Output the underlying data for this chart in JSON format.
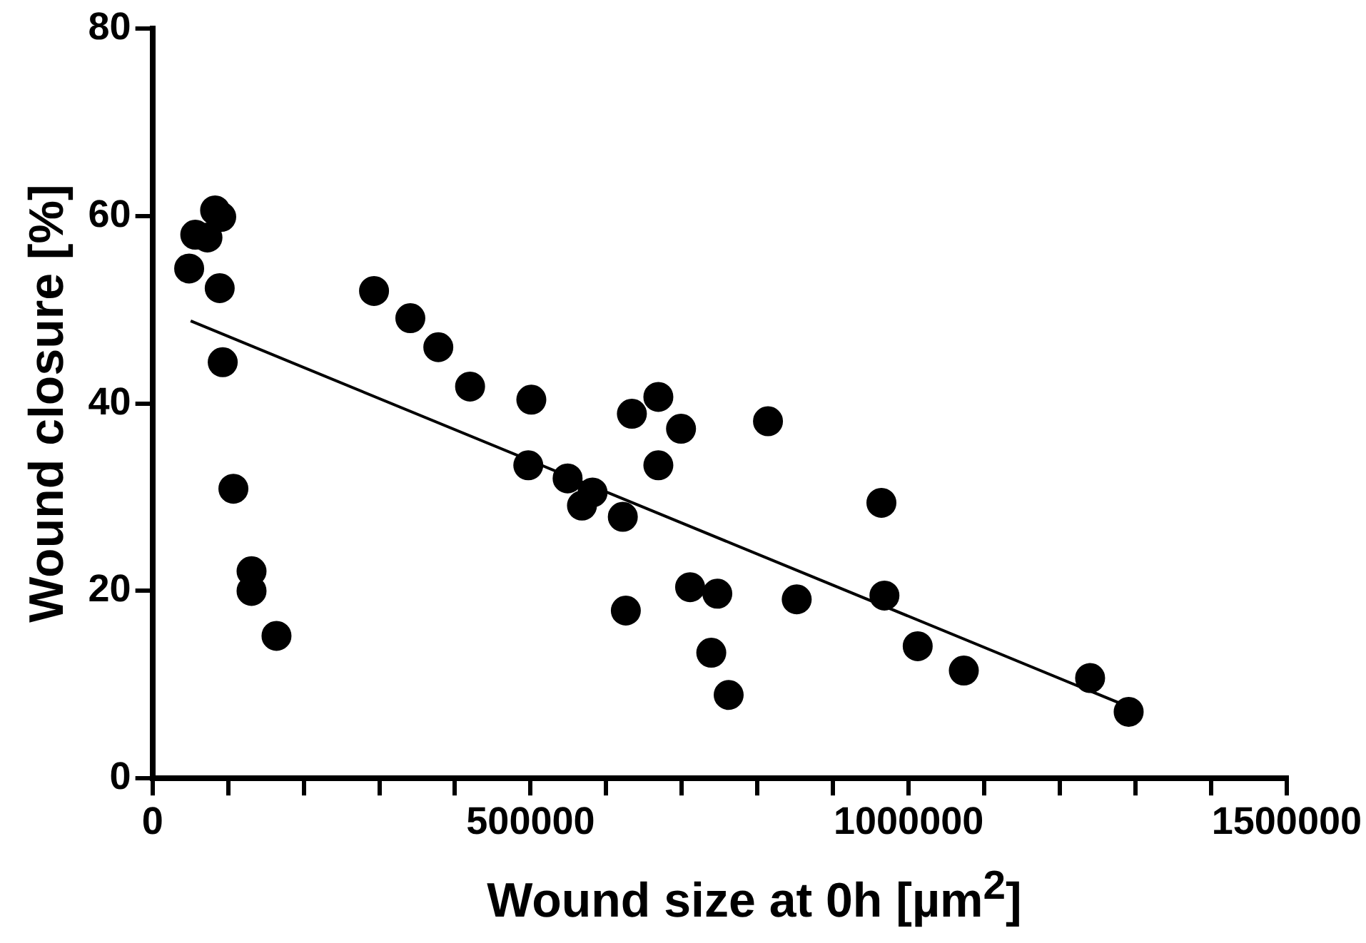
{
  "chart_data": {
    "type": "scatter",
    "xlabel": "Wound size at 0h [µm$^{2}$]",
    "ylabel": "Wound closure [%]",
    "xlim": [
      0,
      1500000
    ],
    "ylim": [
      0,
      80
    ],
    "xticks": [
      0,
      {
        "value": 100000,
        "label": null
      },
      {
        "value": 200000,
        "label": null
      },
      {
        "value": 300000,
        "label": null
      },
      {
        "value": 400000,
        "label": null
      },
      500000,
      {
        "value": 600000,
        "label": null
      },
      {
        "value": 700000,
        "label": null
      },
      {
        "value": 800000,
        "label": null
      },
      {
        "value": 900000,
        "label": null
      },
      1000000,
      {
        "value": 1100000,
        "label": null
      },
      {
        "value": 1200000,
        "label": null
      },
      {
        "value": 1300000,
        "label": null
      },
      {
        "value": 1400000,
        "label": null
      },
      1500000
    ],
    "yticks": [
      0,
      20,
      40,
      60,
      80
    ],
    "grid": false,
    "legend": false,
    "marker": "circle",
    "series": [
      {
        "type": "scatter",
        "color": "#000000",
        "x": [
          48500,
          56600,
          72700,
          82800,
          90900,
          88900,
          92900,
          107000,
          131000,
          131000,
          164000,
          293000,
          341000,
          378000,
          420000,
          501000,
          497000,
          549000,
          568000,
          582000,
          622000,
          626000,
          634000,
          669000,
          669000,
          699000,
          711000,
          739000,
          747000,
          762000,
          814000,
          852000,
          964000,
          968000,
          1012000,
          1073000,
          1240000,
          1291000
        ],
        "values": [
          54.4,
          58.0,
          57.7,
          60.6,
          59.9,
          52.3,
          44.4,
          30.9,
          22.1,
          20.0,
          15.2,
          52.0,
          49.1,
          46.0,
          41.8,
          40.4,
          33.4,
          32.0,
          29.1,
          30.5,
          27.9,
          17.9,
          38.9,
          40.7,
          33.4,
          37.3,
          20.4,
          13.4,
          19.7,
          8.9,
          38.1,
          19.1,
          29.4,
          19.5,
          14.1,
          11.5,
          10.7,
          7.1
        ]
      },
      {
        "type": "line",
        "color": "#000000",
        "marker": "none",
        "line_style": "solid",
        "x": [
          50500,
          1283000
        ],
        "values": [
          48.8,
          7.9
        ]
      }
    ]
  }
}
